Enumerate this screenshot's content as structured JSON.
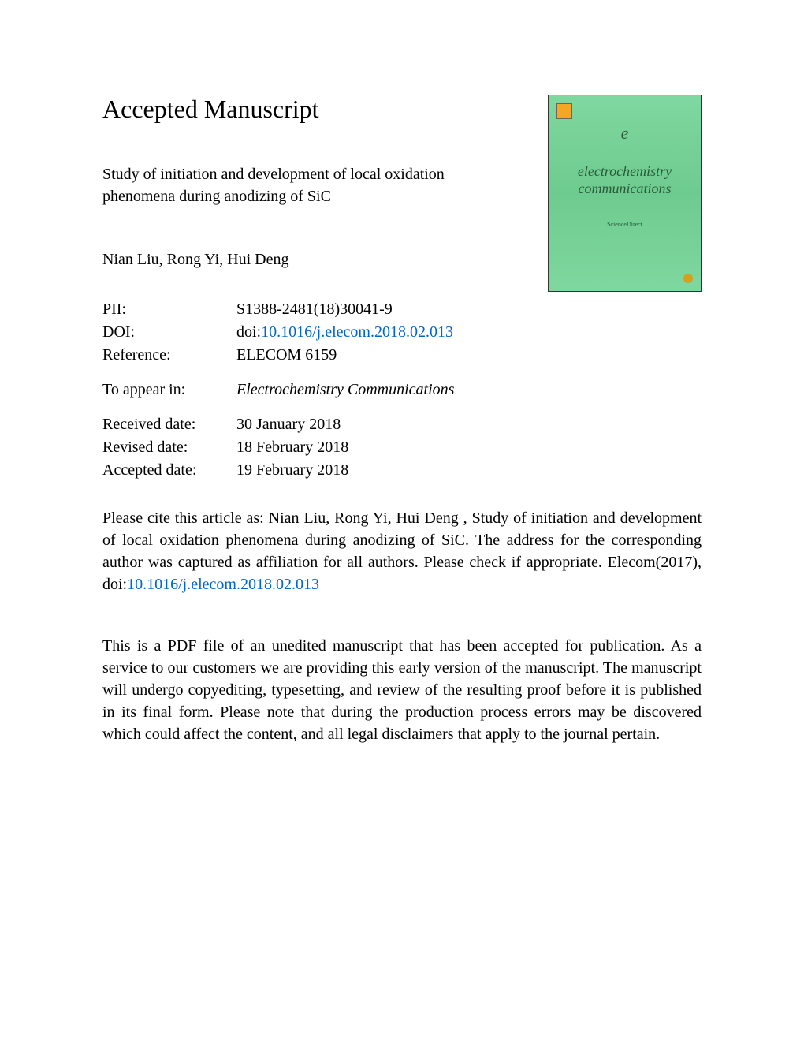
{
  "heading": "Accepted Manuscript",
  "title": "Study of initiation and development of local oxidation phenomena during anodizing of SiC",
  "authors": "Nian Liu, Rong Yi, Hui Deng",
  "journal_cover": {
    "title_line1": "electrochemistry",
    "title_line2": "communications",
    "subtitle": "ScienceDirect",
    "background_color": "#7fd89f",
    "text_color": "#2a5a3a"
  },
  "meta": {
    "pii_label": "PII:",
    "pii_value": "S1388-2481(18)30041-9",
    "doi_label": "DOI:",
    "doi_prefix": "doi:",
    "doi_link": "10.1016/j.elecom.2018.02.013",
    "reference_label": "Reference:",
    "reference_value": "ELECOM 6159",
    "appear_label": "To appear in:",
    "appear_value": "Electrochemistry Communications",
    "received_label": "Received date:",
    "received_value": "30 January 2018",
    "revised_label": "Revised date:",
    "revised_value": "18 February 2018",
    "accepted_label": "Accepted date:",
    "accepted_value": "19 February 2018"
  },
  "citation": {
    "text_before": "Please cite this article as: Nian Liu, Rong Yi, Hui Deng , Study of initiation and development of local oxidation phenomena during anodizing of SiC. The address for the corresponding author was captured as affiliation for all authors. Please check if appropriate. Elecom(2017), doi:",
    "link": "10.1016/j.elecom.2018.02.013"
  },
  "disclaimer": "This is a PDF file of an unedited manuscript that has been accepted for publication. As a service to our customers we are providing this early version of the manuscript. The manuscript will undergo copyediting, typesetting, and review of the resulting proof before it is published in its final form. Please note that during the production process errors may be discovered which could affect the content, and all legal disclaimers that apply to the journal pertain.",
  "colors": {
    "text": "#000000",
    "link": "#0066cc",
    "background": "#ffffff"
  },
  "typography": {
    "heading_fontsize": 32,
    "body_fontsize": 20,
    "font_family": "Times New Roman"
  }
}
